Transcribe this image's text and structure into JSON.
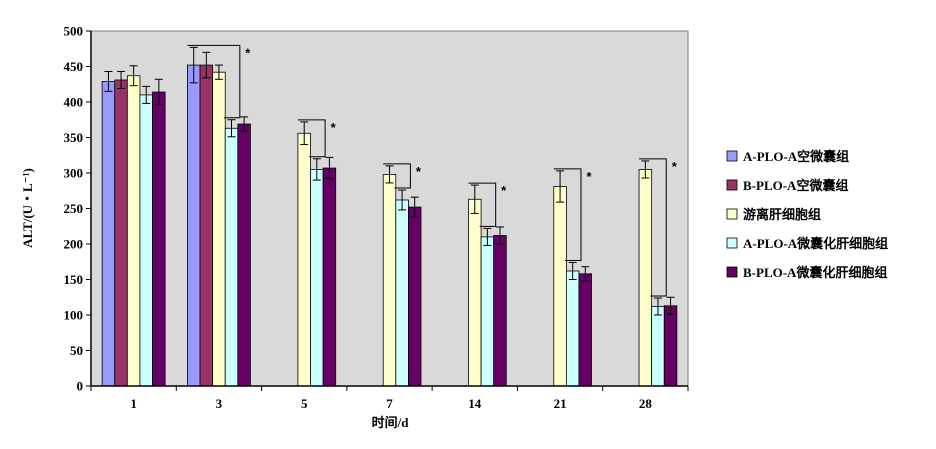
{
  "chart_data": {
    "type": "bar",
    "xlabel": "时间/d",
    "ylabel": "ALT/(U・L⁻¹)",
    "ylim": [
      0,
      500
    ],
    "yticks": [
      0,
      50,
      100,
      150,
      200,
      250,
      300,
      350,
      400,
      450,
      500
    ],
    "categories": [
      "1",
      "3",
      "5",
      "7",
      "14",
      "21",
      "28"
    ],
    "grid": false,
    "legend_position": "right",
    "plot_background": "#d9d9d9",
    "series": [
      {
        "name": "A-PLO-A空微囊组",
        "color": "#9999ff",
        "values": [
          429,
          452,
          null,
          null,
          null,
          null,
          null
        ],
        "errors": [
          14,
          25,
          null,
          null,
          null,
          null,
          null
        ]
      },
      {
        "name": "B-PLO-A空微囊组",
        "color": "#993366",
        "values": [
          431,
          452,
          null,
          null,
          null,
          null,
          null
        ],
        "errors": [
          12,
          18,
          null,
          null,
          null,
          null,
          null
        ]
      },
      {
        "name": "游离肝细胞组",
        "color": "#ffffcc",
        "values": [
          437,
          442,
          356,
          298,
          263,
          281,
          305
        ],
        "errors": [
          14,
          10,
          16,
          12,
          20,
          22,
          12
        ]
      },
      {
        "name": "A-PLO-A微囊化肝细胞组",
        "color": "#ccffff",
        "values": [
          410,
          363,
          305,
          262,
          210,
          162,
          112
        ],
        "errors": [
          12,
          12,
          15,
          14,
          12,
          12,
          12
        ]
      },
      {
        "name": "B-PLO-A微囊化肝细胞组",
        "color": "#660066",
        "values": [
          414,
          369,
          307,
          252,
          212,
          158,
          113
        ],
        "errors": [
          18,
          10,
          15,
          14,
          12,
          10,
          12
        ]
      }
    ],
    "annotations": [
      {
        "category": "3",
        "text": "*"
      },
      {
        "category": "5",
        "text": "*"
      },
      {
        "category": "7",
        "text": "*"
      },
      {
        "category": "14",
        "text": "*"
      },
      {
        "category": "21",
        "text": "*"
      },
      {
        "category": "28",
        "text": "*"
      }
    ]
  }
}
